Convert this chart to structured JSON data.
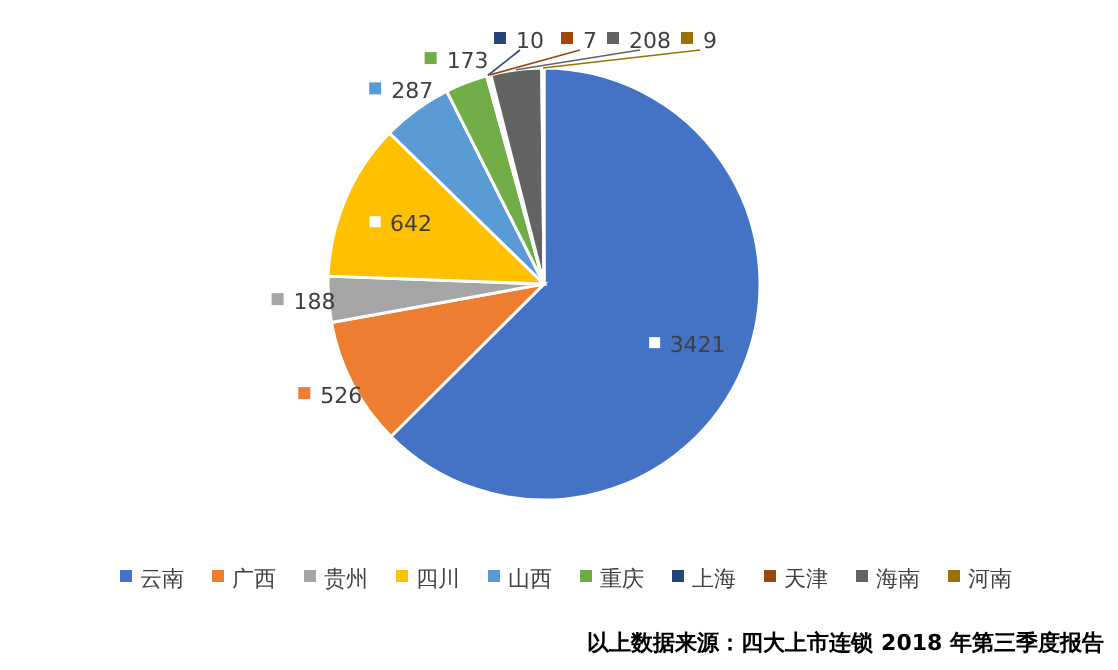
{
  "chart_data": {
    "type": "pie",
    "categories": [
      "云南",
      "广西",
      "贵州",
      "四川",
      "山西",
      "重庆",
      "上海",
      "天津",
      "海南",
      "河南"
    ],
    "values": [
      3421,
      526,
      188,
      642,
      287,
      173,
      10,
      7,
      208,
      9
    ],
    "colors": [
      "#4472c4",
      "#ed7d31",
      "#a5a5a5",
      "#ffc000",
      "#5b9bd5",
      "#70ad47",
      "#264478",
      "#9e480e",
      "#636363",
      "#997300"
    ],
    "data_labels": true,
    "legend": "bottom",
    "annotations": [
      "以上数据来源：四大上市连锁 2018 年第三季度报告"
    ]
  }
}
